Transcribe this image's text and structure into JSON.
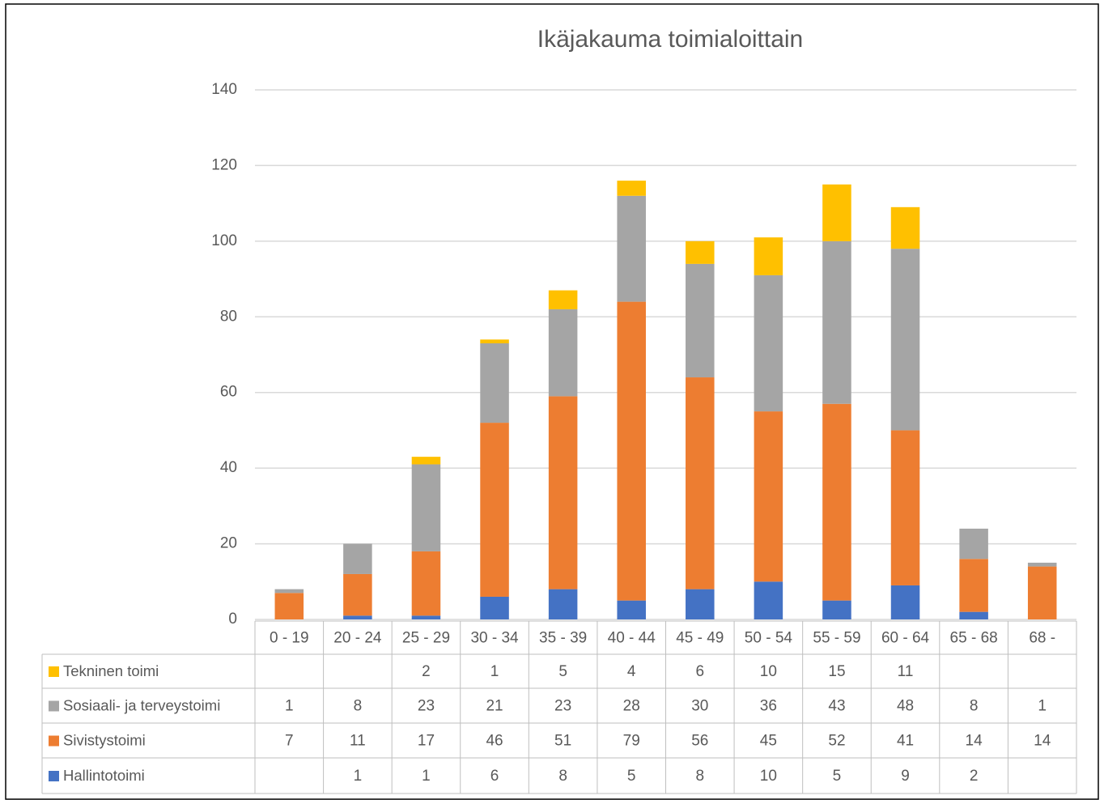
{
  "chart_data": {
    "type": "stacked_bar",
    "title": "Ikäjakauma toimialoittain",
    "categories": [
      "0 - 19",
      "20 - 24",
      "25 - 29",
      "30 - 34",
      "35 - 39",
      "40 - 44",
      "45 - 49",
      "50 - 54",
      "55 - 59",
      "60 - 64",
      "65 - 68",
      "68 -"
    ],
    "series": [
      {
        "name": "Hallintotoimi",
        "color": "#4472c4",
        "values": [
          null,
          1,
          1,
          6,
          8,
          5,
          8,
          10,
          5,
          9,
          2,
          null
        ]
      },
      {
        "name": "Sivistystoimi",
        "color": "#ed7d31",
        "values": [
          7,
          11,
          17,
          46,
          51,
          79,
          56,
          45,
          52,
          41,
          14,
          14
        ]
      },
      {
        "name": "Sosiaali- ja terveystoimi",
        "color": "#a5a5a5",
        "values": [
          1,
          8,
          23,
          21,
          23,
          28,
          30,
          36,
          43,
          48,
          8,
          1
        ]
      },
      {
        "name": "Tekninen toimi",
        "color": "#ffc000",
        "values": [
          null,
          null,
          2,
          1,
          5,
          4,
          6,
          10,
          15,
          11,
          null,
          null
        ]
      }
    ],
    "ylim": [
      0,
      140
    ],
    "yticks": [
      0,
      20,
      40,
      60,
      80,
      100,
      120,
      140
    ],
    "grid": true,
    "data_table": true
  }
}
